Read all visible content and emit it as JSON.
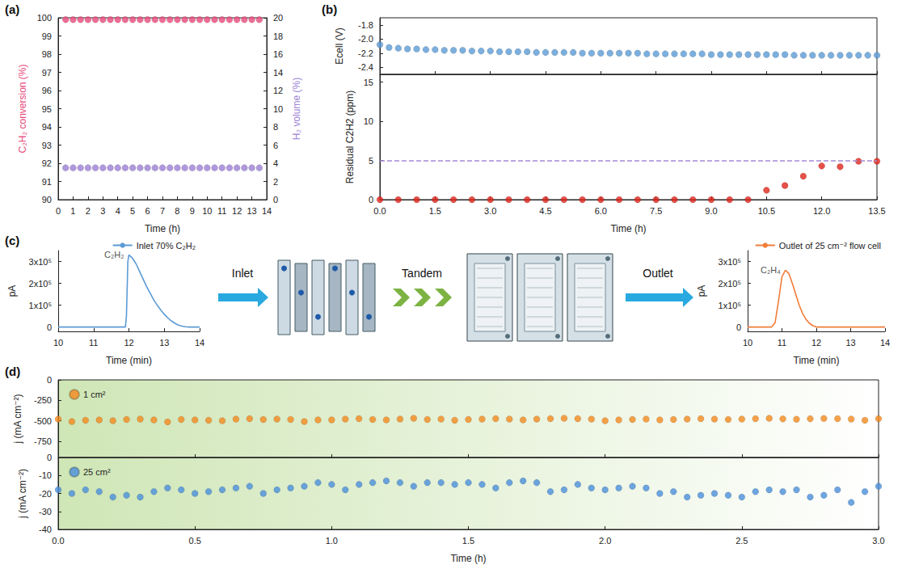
{
  "chart_data": [
    {
      "panel": "(a)",
      "type": "scatter",
      "xlabel": "Time (h)",
      "ylabel": "C₂H₂ conversion (%)",
      "y2label": "H₂ volume (%)",
      "xlim": [
        0,
        14
      ],
      "xticks": [
        0,
        1,
        2,
        3,
        4,
        5,
        6,
        7,
        8,
        9,
        10,
        11,
        12,
        13,
        14
      ],
      "ylim": [
        90,
        100
      ],
      "yticks": [
        90,
        91,
        92,
        93,
        94,
        95,
        96,
        97,
        98,
        99,
        100
      ],
      "y2lim": [
        0,
        20
      ],
      "y2ticks": [
        0,
        2,
        4,
        6,
        8,
        10,
        12,
        14,
        16,
        18,
        20
      ],
      "x": [
        0.5,
        1,
        1.5,
        2,
        2.5,
        3,
        3.5,
        4,
        4.5,
        5,
        5.5,
        6,
        6.5,
        7,
        7.5,
        8,
        8.5,
        9,
        9.5,
        10,
        10.5,
        11,
        11.5,
        12,
        12.5,
        13,
        13.5
      ],
      "series": [
        {
          "color": "#e8497a",
          "marker": "circle",
          "values": [
            99.9,
            99.9,
            99.9,
            99.9,
            99.9,
            99.9,
            99.9,
            99.9,
            99.9,
            99.9,
            99.9,
            99.9,
            99.9,
            99.9,
            99.9,
            99.9,
            99.9,
            99.9,
            99.9,
            99.9,
            99.9,
            99.9,
            99.9,
            99.9,
            99.9,
            99.9,
            99.9
          ]
        },
        {
          "color": "#9b7fd4",
          "marker": "circle",
          "axis": "y2",
          "values": [
            3.5,
            3.5,
            3.5,
            3.5,
            3.5,
            3.5,
            3.5,
            3.5,
            3.5,
            3.5,
            3.5,
            3.5,
            3.5,
            3.5,
            3.5,
            3.5,
            3.5,
            3.5,
            3.5,
            3.5,
            3.5,
            3.5,
            3.5,
            3.5,
            3.5,
            3.5,
            3.5
          ]
        }
      ]
    },
    {
      "panel": "(b)",
      "type": "scatter",
      "ylabel": "Ecell (V)",
      "tick_labels": "y",
      "xlim": [
        0,
        13.5
      ],
      "xticks": [
        {
          "value": 0,
          "label": "0.0"
        },
        1.5,
        {
          "value": 3,
          "label": "3.0"
        },
        4.5,
        {
          "value": 6,
          "label": "6.0"
        },
        7.5,
        {
          "value": 9,
          "label": "9.0"
        },
        10.5,
        {
          "value": 12,
          "label": "12.0"
        },
        13.5
      ],
      "ylim": [
        -2.5,
        -1.7
      ],
      "yticks": [
        -2.4,
        -2.2,
        {
          "value": -2,
          "label": "-2.0"
        },
        -1.8
      ],
      "x": [
        0,
        0.25,
        0.5,
        0.75,
        1,
        1.25,
        1.5,
        1.75,
        2,
        2.25,
        2.5,
        2.75,
        3,
        3.25,
        3.5,
        3.75,
        4,
        4.25,
        4.5,
        4.75,
        5,
        5.25,
        5.5,
        5.75,
        6,
        6.25,
        6.5,
        6.75,
        7,
        7.25,
        7.5,
        7.75,
        8,
        8.25,
        8.5,
        8.75,
        9,
        9.25,
        9.5,
        9.75,
        10,
        10.25,
        10.5,
        10.75,
        11,
        11.25,
        11.5,
        11.75,
        12,
        12.25,
        12.5,
        12.75,
        13,
        13.25,
        13.5
      ],
      "series": [
        {
          "color": "#5b9bd5",
          "marker": "circle",
          "values": [
            -2.08,
            -2.12,
            -2.13,
            -2.14,
            -2.14,
            -2.15,
            -2.15,
            -2.16,
            -2.16,
            -2.16,
            -2.17,
            -2.17,
            -2.17,
            -2.18,
            -2.18,
            -2.18,
            -2.18,
            -2.19,
            -2.19,
            -2.19,
            -2.19,
            -2.19,
            -2.2,
            -2.2,
            -2.2,
            -2.2,
            -2.2,
            -2.2,
            -2.2,
            -2.21,
            -2.21,
            -2.21,
            -2.21,
            -2.21,
            -2.21,
            -2.21,
            -2.22,
            -2.22,
            -2.22,
            -2.22,
            -2.22,
            -2.22,
            -2.22,
            -2.22,
            -2.22,
            -2.23,
            -2.23,
            -2.23,
            -2.23,
            -2.23,
            -2.23,
            -2.23,
            -2.23,
            -2.23,
            -2.23
          ]
        }
      ]
    },
    {
      "type": "scatter",
      "xlabel": "Time (h)",
      "ylabel": "Residual C2H2 (ppm)",
      "xlim": [
        0,
        13.5
      ],
      "xticks": [
        {
          "value": 0,
          "label": "0.0"
        },
        1.5,
        {
          "value": 3,
          "label": "3.0"
        },
        4.5,
        {
          "value": 6,
          "label": "6.0"
        },
        7.5,
        {
          "value": 9,
          "label": "9.0"
        },
        10.5,
        {
          "value": 12,
          "label": "12.0"
        },
        13.5
      ],
      "ylim": [
        0,
        16
      ],
      "yticks": [
        0,
        5,
        10,
        15
      ],
      "threshold": 5,
      "x": [
        0,
        0.5,
        1,
        1.5,
        2,
        2.5,
        3,
        3.5,
        4,
        4.5,
        5,
        5.5,
        6,
        6.5,
        7,
        7.5,
        8,
        8.5,
        9,
        9.5,
        10,
        10.5,
        11,
        11.5,
        12,
        12.5,
        13,
        13.5
      ],
      "series": [
        {
          "color": "#e0261b",
          "marker": "circle",
          "values": [
            0,
            0,
            0,
            0,
            0,
            0,
            0,
            0,
            0,
            0,
            0,
            0,
            0,
            0,
            0,
            0,
            0,
            0,
            0,
            0,
            0,
            1.2,
            1.8,
            3.0,
            4.3,
            4.2,
            4.9,
            4.9
          ]
        }
      ]
    },
    {
      "panel": "(c)",
      "type": "line",
      "xlabel": "Time (min)",
      "ylabel": "pA",
      "legend": "upper right",
      "xlim": [
        10,
        14
      ],
      "xticks": [
        10,
        11,
        12,
        13,
        14
      ],
      "ylim": [
        -20000,
        350000
      ],
      "yticks": [
        0,
        {
          "value": 100000,
          "label": "1x10⁵"
        },
        {
          "value": 200000,
          "label": "2x10⁵"
        },
        {
          "value": 300000,
          "label": "3x10⁵"
        }
      ],
      "x": [
        10,
        11.9,
        11.93,
        11.97,
        12,
        12.1,
        12.2,
        12.3,
        12.4,
        12.5,
        12.6,
        12.7,
        12.8,
        12.9,
        13,
        13.1,
        13.2,
        13.3,
        13.4,
        13.5,
        13.6,
        13.7,
        14
      ],
      "series": [
        {
          "name": "Inlet 70% C₂H₂",
          "color": "#5b9bd5",
          "marker": "none",
          "values": [
            0,
            0,
            50000,
            300000,
            330000,
            315000,
            290000,
            255000,
            220000,
            185000,
            155000,
            125000,
            100000,
            78000,
            58000,
            42000,
            28000,
            17000,
            9000,
            4000,
            1000,
            0,
            0
          ]
        }
      ],
      "annotations": [
        {
          "text": "C₂H₂",
          "x": 12,
          "y": 330000
        }
      ]
    },
    {
      "type": "line",
      "xlabel": "Time (min)",
      "ylabel": "pA",
      "legend": "upper right",
      "xlim": [
        10,
        14
      ],
      "xticks": [
        10,
        11,
        12,
        13,
        14
      ],
      "ylim": [
        -20000,
        350000
      ],
      "yticks": [
        0,
        {
          "value": 100000,
          "label": "1x10⁵"
        },
        {
          "value": 200000,
          "label": "2x10⁵"
        },
        {
          "value": 300000,
          "label": "3x10⁵"
        }
      ],
      "x": [
        10,
        10.7,
        10.8,
        10.9,
        11,
        11.1,
        11.2,
        11.3,
        11.4,
        11.5,
        11.6,
        11.7,
        11.8,
        11.9,
        12,
        14
      ],
      "series": [
        {
          "name": "Outlet of 25 cm⁻² flow cell",
          "color": "#f07d3a",
          "marker": "none",
          "values": [
            0,
            0,
            20000,
            120000,
            230000,
            260000,
            245000,
            200000,
            150000,
            100000,
            62000,
            35000,
            17000,
            6000,
            0,
            0
          ]
        }
      ],
      "annotations": [
        {
          "text": "C₂H₄",
          "x": 11.1,
          "y": 260000
        }
      ]
    },
    {
      "panel": "(d)",
      "type": "scatter",
      "ylabel": "j (mA cm⁻²)",
      "tick_labels": "y",
      "legend": "upper left",
      "xlim": [
        0,
        3
      ],
      "xticks": [
        {
          "value": 0,
          "label": "0.0"
        },
        0.5,
        {
          "value": 1,
          "label": "1.0"
        },
        1.5,
        {
          "value": 2,
          "label": "2.0"
        },
        2.5,
        {
          "value": 3,
          "label": "3.0"
        }
      ],
      "ylim": [
        -950,
        0
      ],
      "yticks": [
        -750,
        -500,
        -250,
        0
      ],
      "x": [
        0,
        0.05,
        0.1,
        0.15,
        0.2,
        0.25,
        0.3,
        0.35,
        0.4,
        0.45,
        0.5,
        0.55,
        0.6,
        0.65,
        0.7,
        0.75,
        0.8,
        0.85,
        0.9,
        0.95,
        1,
        1.05,
        1.1,
        1.15,
        1.2,
        1.25,
        1.3,
        1.35,
        1.4,
        1.45,
        1.5,
        1.55,
        1.6,
        1.65,
        1.7,
        1.75,
        1.8,
        1.85,
        1.9,
        1.95,
        2,
        2.05,
        2.1,
        2.15,
        2.2,
        2.25,
        2.3,
        2.35,
        2.4,
        2.45,
        2.5,
        2.55,
        2.6,
        2.65,
        2.7,
        2.75,
        2.8,
        2.85,
        2.9,
        2.95,
        3
      ],
      "series": [
        {
          "name": "1 cm²",
          "color": "#f28a1e",
          "marker": "circle",
          "values": [
            -480,
            -510,
            -495,
            -490,
            -500,
            -485,
            -480,
            -490,
            -515,
            -485,
            -490,
            -495,
            -500,
            -480,
            -475,
            -485,
            -480,
            -485,
            -510,
            -490,
            -490,
            -480,
            -475,
            -485,
            -490,
            -480,
            -470,
            -485,
            -480,
            -495,
            -485,
            -480,
            -475,
            -480,
            -490,
            -480,
            -475,
            -470,
            -475,
            -480,
            -500,
            -490,
            -485,
            -480,
            -490,
            -485,
            -480,
            -475,
            -480,
            -485,
            -480,
            -475,
            -470,
            -478,
            -482,
            -476,
            -472,
            -475,
            -480,
            -495,
            -475
          ]
        }
      ]
    },
    {
      "type": "scatter",
      "xlabel": "Time (h)",
      "ylabel": "j (mA cm⁻²)",
      "legend": "upper left",
      "xlim": [
        0,
        3
      ],
      "xticks": [
        {
          "value": 0,
          "label": "0.0"
        },
        0.5,
        {
          "value": 1,
          "label": "1.0"
        },
        1.5,
        {
          "value": 2,
          "label": "2.0"
        },
        2.5,
        {
          "value": 3,
          "label": "3.0"
        }
      ],
      "ylim": [
        -40,
        0
      ],
      "yticks": [
        -40,
        -30,
        -20,
        -10,
        0
      ],
      "x": [
        0,
        0.05,
        0.1,
        0.15,
        0.2,
        0.25,
        0.3,
        0.35,
        0.4,
        0.45,
        0.5,
        0.55,
        0.6,
        0.65,
        0.7,
        0.75,
        0.8,
        0.85,
        0.9,
        0.95,
        1,
        1.05,
        1.1,
        1.15,
        1.2,
        1.25,
        1.3,
        1.35,
        1.4,
        1.45,
        1.5,
        1.55,
        1.6,
        1.65,
        1.7,
        1.75,
        1.8,
        1.85,
        1.9,
        1.95,
        2,
        2.05,
        2.1,
        2.15,
        2.2,
        2.25,
        2.3,
        2.35,
        2.4,
        2.45,
        2.5,
        2.55,
        2.6,
        2.65,
        2.7,
        2.75,
        2.8,
        2.85,
        2.9,
        2.95,
        3
      ],
      "series": [
        {
          "name": "25 cm²",
          "color": "#4a8fdb",
          "marker": "circle",
          "values": [
            -18,
            -20,
            -18,
            -19,
            -22,
            -21,
            -22,
            -19,
            -17,
            -18,
            -20,
            -19,
            -18,
            -17,
            -16,
            -20,
            -18,
            -17,
            -16,
            -14,
            -15,
            -18,
            -15,
            -14,
            -13,
            -14,
            -16,
            -14,
            -14,
            -15,
            -14,
            -15,
            -17,
            -14,
            -13,
            -14,
            -19,
            -18,
            -15,
            -17,
            -18,
            -17,
            -16,
            -17,
            -20,
            -19,
            -22,
            -21,
            -20,
            -21,
            -22,
            -19,
            -18,
            -19,
            -18,
            -22,
            -21,
            -18,
            -25,
            -19,
            -16
          ]
        }
      ]
    }
  ],
  "diagram": {
    "steps": [
      "Inlet",
      "Tandem",
      "Outlet"
    ]
  }
}
